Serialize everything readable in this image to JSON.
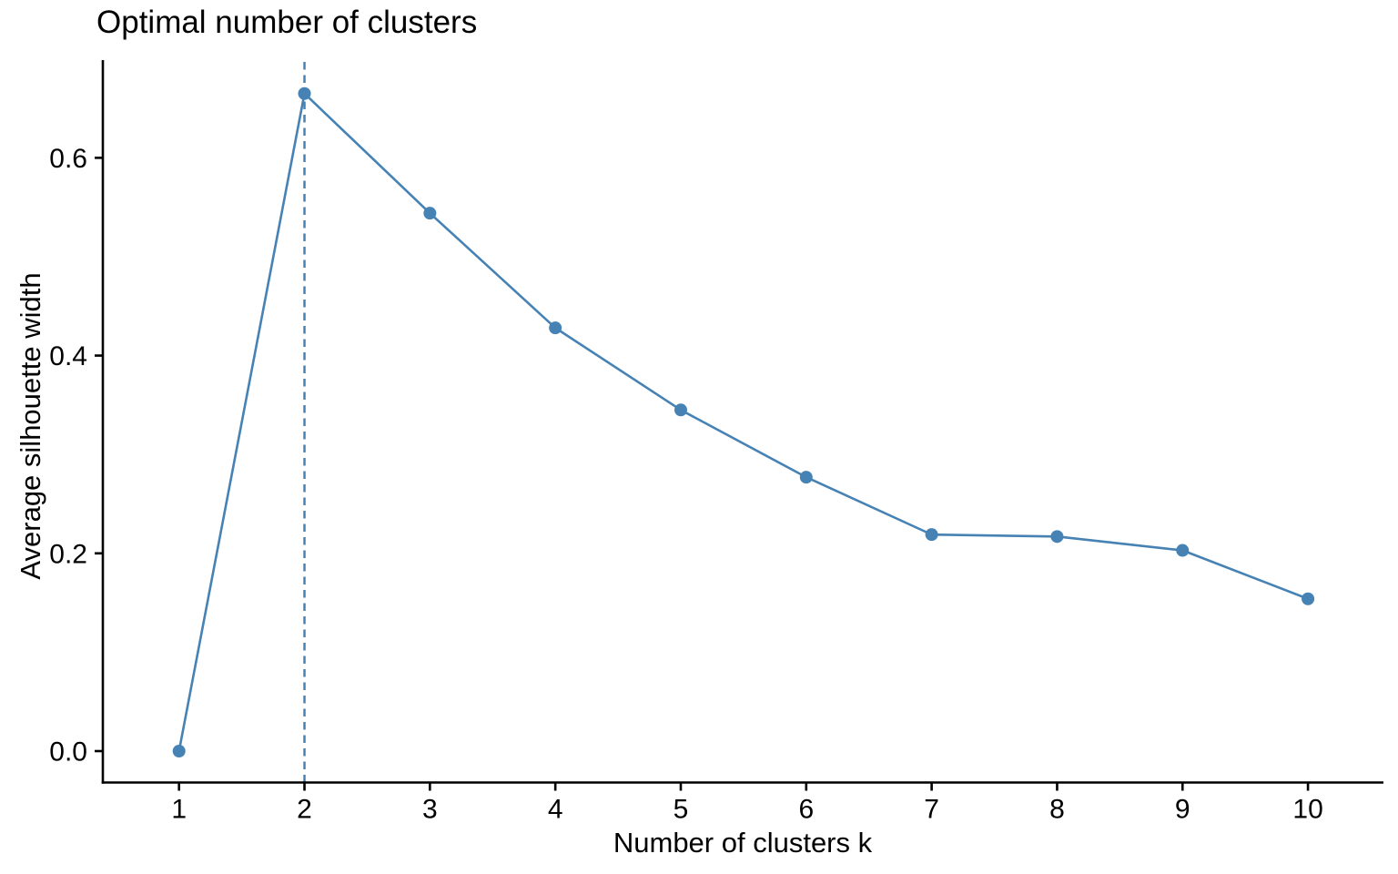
{
  "chart_data": {
    "type": "line",
    "title": "Optimal number of clusters",
    "xlabel": "Number of clusters k",
    "ylabel": "Average silhouette width",
    "x": [
      1,
      2,
      3,
      4,
      5,
      6,
      7,
      8,
      9,
      10
    ],
    "y": [
      0.0,
      0.665,
      0.544,
      0.428,
      0.345,
      0.277,
      0.219,
      0.217,
      0.203,
      0.154
    ],
    "x_tick_labels": [
      "1",
      "2",
      "3",
      "4",
      "5",
      "6",
      "7",
      "8",
      "9",
      "10"
    ],
    "y_ticks": [
      0.0,
      0.2,
      0.4,
      0.6
    ],
    "y_tick_labels": [
      "0.0",
      "0.2",
      "0.4",
      "0.6"
    ],
    "ylim": [
      0,
      0.7
    ],
    "optimal_k": 2,
    "vline": {
      "x": 2,
      "style": "dashed"
    },
    "line_color": "#4682B4",
    "axis_color": "#000000",
    "grid": false,
    "legend_position": "none"
  }
}
